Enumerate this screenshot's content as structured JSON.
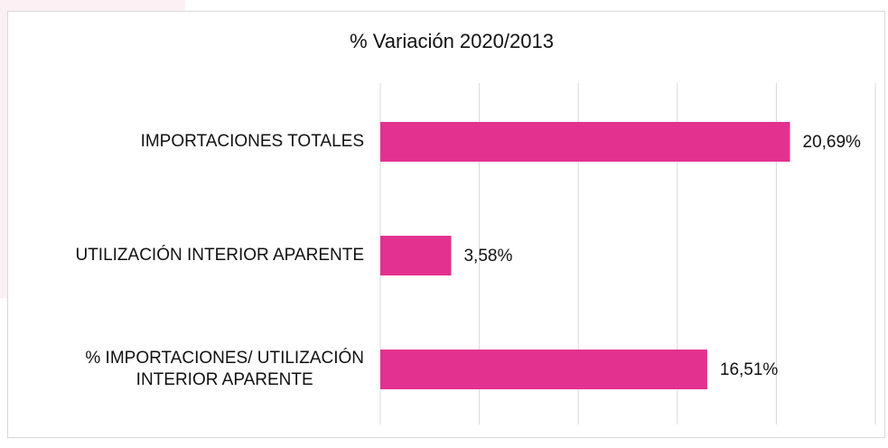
{
  "chart_data": {
    "type": "bar",
    "orientation": "horizontal",
    "title": "% Variación 2020/2013",
    "categories": [
      "IMPORTACIONES TOTALES",
      "UTILIZACIÓN INTERIOR APARENTE",
      "% IMPORTACIONES/ UTILIZACIÓN\nINTERIOR APARENTE"
    ],
    "values": [
      20.69,
      3.58,
      16.51
    ],
    "value_labels": [
      "20,69%",
      "3,58%",
      "16,51%"
    ],
    "color": "#e3318f",
    "xlim": [
      0,
      25
    ],
    "xticks": [
      0,
      5,
      10,
      15,
      20,
      25
    ],
    "grid": true
  }
}
